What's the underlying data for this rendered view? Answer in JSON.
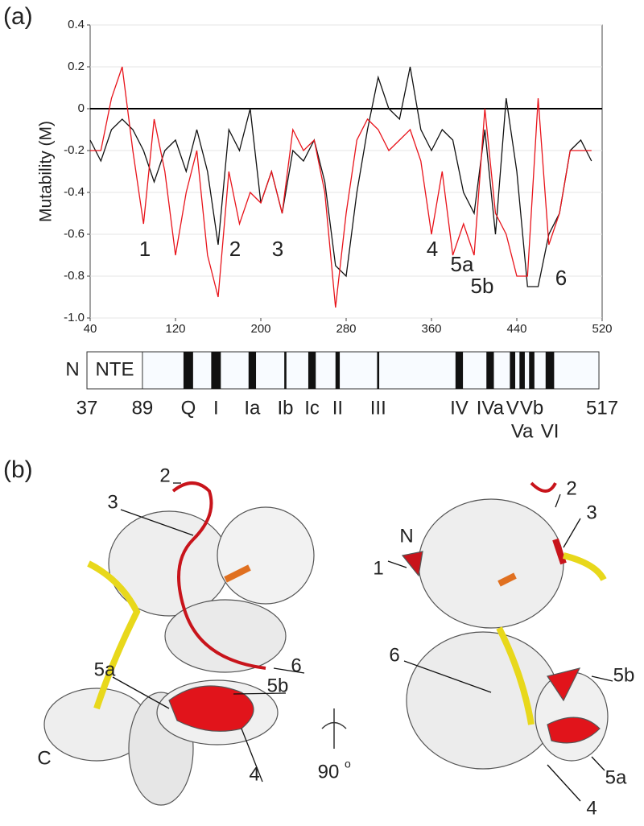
{
  "chart_data": {
    "type": "line",
    "panel_label": "(a)",
    "y_label": "Mutability (M)",
    "x": [
      40,
      50,
      60,
      70,
      80,
      90,
      100,
      110,
      120,
      130,
      140,
      150,
      160,
      170,
      180,
      190,
      200,
      210,
      220,
      230,
      240,
      250,
      260,
      270,
      280,
      290,
      300,
      310,
      320,
      330,
      340,
      350,
      360,
      370,
      380,
      390,
      400,
      410,
      420,
      430,
      440,
      450,
      460,
      470,
      480,
      490,
      500,
      510
    ],
    "series": [
      {
        "color": "#111111",
        "values": [
          -0.15,
          -0.25,
          -0.1,
          -0.05,
          -0.1,
          -0.2,
          -0.35,
          -0.2,
          -0.15,
          -0.3,
          -0.1,
          -0.3,
          -0.65,
          -0.1,
          -0.2,
          0.0,
          -0.45,
          -0.3,
          -0.5,
          -0.2,
          -0.25,
          -0.15,
          -0.35,
          -0.75,
          -0.8,
          -0.4,
          -0.1,
          0.15,
          0.0,
          -0.05,
          0.2,
          -0.1,
          -0.2,
          -0.1,
          -0.15,
          -0.4,
          -0.5,
          -0.1,
          -0.6,
          0.05,
          -0.3,
          -0.85,
          -0.85,
          -0.6,
          -0.5,
          -0.2,
          -0.15,
          -0.25
        ]
      },
      {
        "color": "#e8141b",
        "values": [
          -0.2,
          -0.2,
          0.05,
          0.2,
          -0.2,
          -0.55,
          -0.05,
          -0.3,
          -0.7,
          -0.4,
          -0.2,
          -0.7,
          -0.9,
          -0.3,
          -0.55,
          -0.4,
          -0.45,
          -0.3,
          -0.5,
          -0.1,
          -0.2,
          -0.15,
          -0.4,
          -0.95,
          -0.5,
          -0.15,
          -0.05,
          -0.1,
          -0.2,
          -0.15,
          -0.1,
          -0.25,
          -0.6,
          -0.3,
          -0.7,
          -0.55,
          -0.7,
          0.0,
          -0.5,
          -0.6,
          -0.8,
          -0.8,
          0.05,
          -0.65,
          -0.5,
          -0.2,
          -0.2,
          -0.2
        ]
      }
    ],
    "xlim": [
      40,
      520
    ],
    "xticks": [
      40,
      120,
      200,
      280,
      360,
      440,
      520
    ],
    "ylim": [
      -1,
      0.4
    ],
    "yticks": [
      0.4,
      0.2,
      0,
      -0.2,
      -0.4,
      -0.6,
      -0.8,
      {
        "value": -1,
        "label": "-1.0"
      }
    ],
    "zero_line": true,
    "grid": true,
    "annotations": [
      "1",
      "2",
      "3",
      "4",
      "5a",
      "5b",
      "6"
    ]
  },
  "domain_bar": {
    "n_label": "N",
    "nte_label": "NTE",
    "start": 37,
    "nte_end": 89,
    "end": 517,
    "motifs": [
      {
        "label": "Q",
        "position": 132,
        "width": 9
      },
      {
        "label": "I",
        "position": 158,
        "width": 9
      },
      {
        "label": "Ia",
        "position": 192,
        "width": 7
      },
      {
        "label": "Ib",
        "position": 223,
        "width": 2
      },
      {
        "label": "Ic",
        "position": 248,
        "width": 7
      },
      {
        "label": "II",
        "position": 272,
        "width": 4
      },
      {
        "label": "III",
        "position": 310,
        "width": 2
      },
      {
        "label": "IV",
        "position": 386,
        "width": 7
      },
      {
        "label": "IVa",
        "position": 415,
        "width": 7
      },
      {
        "label": "V",
        "position": 436,
        "width": 5
      },
      {
        "label": "Va",
        "position": 445,
        "width": 5
      },
      {
        "label": "Vb",
        "position": 454,
        "width": 5
      },
      {
        "label": "VI",
        "position": 471,
        "width": 8
      }
    ]
  },
  "panel_b": {
    "panel_label": "(b)",
    "rotation_label": "90",
    "rotation_unit": "o",
    "left_labels": [
      "2",
      "3",
      "5a",
      "6",
      "5b",
      "4",
      "C"
    ],
    "right_labels": [
      "N",
      "1",
      "2",
      "3",
      "6",
      "5b",
      "5a",
      "4"
    ]
  }
}
